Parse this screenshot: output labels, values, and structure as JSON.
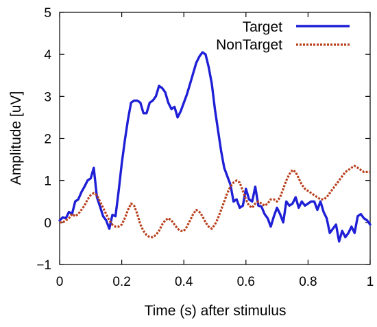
{
  "chart_data": {
    "type": "line",
    "xlabel": "Time (s) after stimulus",
    "ylabel": "Amplitude [uV]",
    "xlim": [
      0,
      1
    ],
    "ylim": [
      -1,
      5
    ],
    "xticks": [
      0,
      0.2,
      0.4,
      0.6,
      0.8,
      1
    ],
    "yticks": [
      -1,
      0,
      1,
      2,
      3,
      4,
      5
    ],
    "xtick_labels": [
      "0",
      "0.2",
      "0.4",
      "0.6",
      "0.8",
      "1"
    ],
    "ytick_labels": [
      "−1",
      "0",
      "1",
      "2",
      "3",
      "4",
      "5"
    ],
    "grid": false,
    "legend_position": "top-right",
    "series": [
      {
        "name": "Target",
        "color": "#1f1fd6",
        "style": "solid",
        "x": [
          0.0,
          0.01,
          0.02,
          0.03,
          0.04,
          0.05,
          0.06,
          0.07,
          0.08,
          0.09,
          0.1,
          0.11,
          0.12,
          0.13,
          0.14,
          0.15,
          0.16,
          0.17,
          0.18,
          0.19,
          0.2,
          0.21,
          0.22,
          0.23,
          0.24,
          0.25,
          0.26,
          0.27,
          0.28,
          0.29,
          0.3,
          0.31,
          0.32,
          0.33,
          0.34,
          0.35,
          0.36,
          0.37,
          0.38,
          0.39,
          0.4,
          0.41,
          0.42,
          0.43,
          0.44,
          0.45,
          0.46,
          0.47,
          0.48,
          0.49,
          0.5,
          0.51,
          0.52,
          0.53,
          0.54,
          0.55,
          0.56,
          0.57,
          0.58,
          0.59,
          0.6,
          0.61,
          0.62,
          0.63,
          0.64,
          0.65,
          0.66,
          0.67,
          0.68,
          0.69,
          0.7,
          0.71,
          0.72,
          0.73,
          0.74,
          0.75,
          0.76,
          0.77,
          0.78,
          0.79,
          0.8,
          0.81,
          0.82,
          0.83,
          0.84,
          0.85,
          0.86,
          0.87,
          0.88,
          0.89,
          0.9,
          0.91,
          0.92,
          0.93,
          0.94,
          0.95,
          0.96,
          0.97,
          0.98,
          0.99,
          1.0
        ],
        "y": [
          0.05,
          0.12,
          0.1,
          0.25,
          0.2,
          0.5,
          0.55,
          0.72,
          0.85,
          1.0,
          1.05,
          1.3,
          0.6,
          0.38,
          0.15,
          0.05,
          -0.15,
          0.18,
          0.15,
          0.75,
          1.4,
          1.95,
          2.45,
          2.85,
          2.9,
          2.9,
          2.85,
          2.6,
          2.6,
          2.85,
          2.9,
          3.0,
          3.25,
          3.2,
          3.1,
          2.85,
          2.7,
          2.75,
          2.5,
          2.65,
          2.85,
          3.05,
          3.3,
          3.55,
          3.8,
          3.95,
          4.05,
          4.0,
          3.7,
          3.3,
          2.7,
          2.2,
          1.7,
          1.3,
          1.1,
          0.9,
          0.5,
          0.55,
          0.35,
          0.4,
          0.8,
          0.55,
          0.5,
          0.85,
          0.4,
          0.38,
          0.2,
          0.1,
          -0.1,
          0.15,
          0.35,
          0.2,
          0.0,
          0.5,
          0.4,
          0.45,
          0.6,
          0.35,
          0.5,
          0.4,
          0.45,
          0.5,
          0.5,
          0.3,
          0.5,
          0.25,
          0.1,
          -0.25,
          -0.15,
          -0.05,
          -0.45,
          -0.2,
          -0.35,
          -0.25,
          -0.1,
          -0.25,
          0.15,
          0.2,
          0.1,
          0.05,
          -0.05
        ]
      },
      {
        "name": "NonTarget",
        "color": "#b8401d",
        "style": "dotted",
        "x": [
          0.0,
          0.01,
          0.02,
          0.03,
          0.04,
          0.05,
          0.06,
          0.07,
          0.08,
          0.09,
          0.1,
          0.11,
          0.12,
          0.13,
          0.14,
          0.15,
          0.16,
          0.17,
          0.18,
          0.19,
          0.2,
          0.21,
          0.22,
          0.23,
          0.24,
          0.25,
          0.26,
          0.27,
          0.28,
          0.29,
          0.3,
          0.31,
          0.32,
          0.33,
          0.34,
          0.35,
          0.36,
          0.37,
          0.38,
          0.39,
          0.4,
          0.41,
          0.42,
          0.43,
          0.44,
          0.45,
          0.46,
          0.47,
          0.48,
          0.49,
          0.5,
          0.51,
          0.52,
          0.53,
          0.54,
          0.55,
          0.56,
          0.57,
          0.58,
          0.59,
          0.6,
          0.61,
          0.62,
          0.63,
          0.64,
          0.65,
          0.66,
          0.67,
          0.68,
          0.69,
          0.7,
          0.71,
          0.72,
          0.73,
          0.74,
          0.75,
          0.76,
          0.77,
          0.78,
          0.79,
          0.8,
          0.81,
          0.82,
          0.83,
          0.84,
          0.85,
          0.86,
          0.87,
          0.88,
          0.89,
          0.9,
          0.91,
          0.92,
          0.93,
          0.94,
          0.95,
          0.96,
          0.97,
          0.98,
          0.99,
          1.0
        ],
        "y": [
          0.0,
          0.0,
          0.05,
          0.1,
          0.2,
          0.15,
          0.2,
          0.3,
          0.4,
          0.55,
          0.65,
          0.7,
          0.65,
          0.5,
          0.35,
          0.2,
          0.05,
          -0.05,
          -0.1,
          -0.1,
          -0.05,
          0.1,
          0.3,
          0.45,
          0.4,
          0.2,
          -0.05,
          -0.2,
          -0.3,
          -0.35,
          -0.35,
          -0.3,
          -0.2,
          -0.05,
          0.05,
          0.1,
          0.05,
          -0.05,
          -0.15,
          -0.2,
          -0.2,
          -0.1,
          0.05,
          0.2,
          0.3,
          0.25,
          0.15,
          0.0,
          -0.1,
          -0.15,
          -0.05,
          0.1,
          0.3,
          0.5,
          0.7,
          0.85,
          0.95,
          1.0,
          0.95,
          0.75,
          0.55,
          0.4,
          0.35,
          0.45,
          0.5,
          0.45,
          0.4,
          0.45,
          0.55,
          0.55,
          0.5,
          0.6,
          0.8,
          1.0,
          1.15,
          1.25,
          1.2,
          1.05,
          0.9,
          0.8,
          0.75,
          0.7,
          0.65,
          0.6,
          0.55,
          0.55,
          0.6,
          0.7,
          0.8,
          0.9,
          1.0,
          1.1,
          1.2,
          1.25,
          1.3,
          1.35,
          1.3,
          1.25,
          1.2,
          1.2,
          1.2
        ]
      }
    ]
  }
}
